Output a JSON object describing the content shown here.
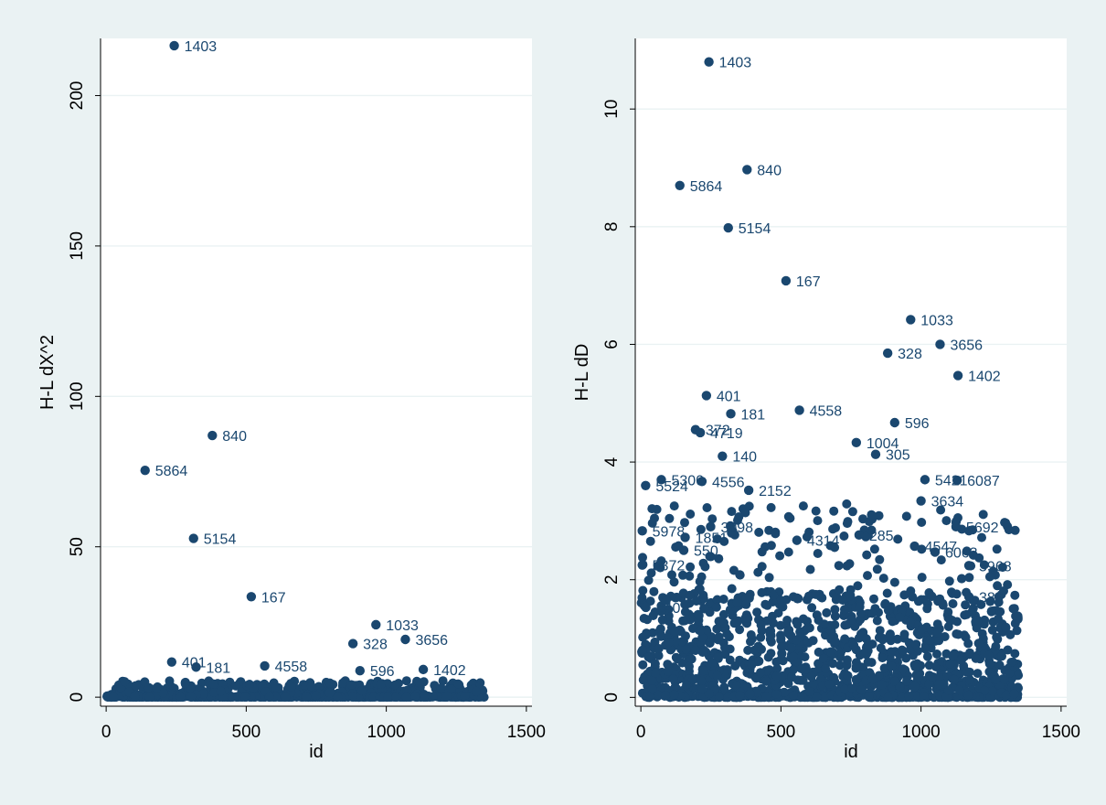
{
  "colors": {
    "background": "#eaf2f3",
    "plot_bg": "#ffffff",
    "marker": "#1a476f",
    "grid": "#eaf2f3",
    "axis": "#000000"
  },
  "chart_data": [
    {
      "type": "scatter",
      "title": "",
      "xlabel": "id",
      "ylabel": "H-L dX^2",
      "xlim": [
        -20,
        1520
      ],
      "ylim": [
        -3,
        219
      ],
      "xticks": [
        0,
        500,
        1000,
        1500
      ],
      "yticks": [
        0,
        50,
        100,
        150,
        200
      ],
      "grid": true,
      "labeled_points": [
        {
          "x": 243,
          "y": 216.6,
          "label": "1403"
        },
        {
          "x": 379,
          "y": 87,
          "label": "840"
        },
        {
          "x": 139,
          "y": 75.4,
          "label": "5864"
        },
        {
          "x": 312,
          "y": 52.8,
          "label": "5154"
        },
        {
          "x": 518,
          "y": 33.4,
          "label": "167"
        },
        {
          "x": 963,
          "y": 24.1,
          "label": "1033"
        },
        {
          "x": 1068,
          "y": 19.2,
          "label": "3656"
        },
        {
          "x": 881,
          "y": 17.8,
          "label": "328"
        },
        {
          "x": 234,
          "y": 11.7,
          "label": "401"
        },
        {
          "x": 566,
          "y": 10.4,
          "label": "4558"
        },
        {
          "x": 1132,
          "y": 9.2,
          "label": "1402"
        },
        {
          "x": 321,
          "y": 10,
          "label": "181"
        },
        {
          "x": 906,
          "y": 8.8,
          "label": "596"
        }
      ]
    },
    {
      "type": "scatter",
      "title": "",
      "xlabel": "id",
      "ylabel": "H-L dD",
      "xlim": [
        -20,
        1520
      ],
      "ylim": [
        -0.15,
        11.2
      ],
      "xticks": [
        0,
        500,
        1000,
        1500
      ],
      "yticks": [
        0,
        2,
        4,
        6,
        8,
        10
      ],
      "grid": true,
      "labeled_points": [
        {
          "x": 243,
          "y": 10.8,
          "label": "1403"
        },
        {
          "x": 379,
          "y": 8.97,
          "label": "840"
        },
        {
          "x": 139,
          "y": 8.7,
          "label": "5864"
        },
        {
          "x": 312,
          "y": 7.98,
          "label": "5154"
        },
        {
          "x": 518,
          "y": 7.08,
          "label": "167"
        },
        {
          "x": 963,
          "y": 6.42,
          "label": "1033"
        },
        {
          "x": 1068,
          "y": 6.0,
          "label": "3656"
        },
        {
          "x": 881,
          "y": 5.85,
          "label": "328"
        },
        {
          "x": 1132,
          "y": 5.47,
          "label": "1402"
        },
        {
          "x": 234,
          "y": 5.13,
          "label": "401"
        },
        {
          "x": 321,
          "y": 4.82,
          "label": "181"
        },
        {
          "x": 566,
          "y": 4.88,
          "label": "4558"
        },
        {
          "x": 906,
          "y": 4.67,
          "label": "596"
        },
        {
          "x": 195,
          "y": 4.55,
          "label": "372"
        },
        {
          "x": 212,
          "y": 4.5,
          "label": "4719"
        },
        {
          "x": 291,
          "y": 4.1,
          "label": "140"
        },
        {
          "x": 769,
          "y": 4.33,
          "label": "1004"
        },
        {
          "x": 838,
          "y": 4.13,
          "label": "305"
        },
        {
          "x": 1129,
          "y": 3.69,
          "label": "6087"
        },
        {
          "x": 1014,
          "y": 3.7,
          "label": "5421"
        },
        {
          "x": 1000,
          "y": 3.34,
          "label": "3634"
        },
        {
          "x": 385,
          "y": 3.52,
          "label": "2152"
        },
        {
          "x": 1125,
          "y": 2.9,
          "label": "5692"
        },
        {
          "x": 5,
          "y": 2.83,
          "label": "5978"
        },
        {
          "x": 249,
          "y": 2.9,
          "label": "3098"
        },
        {
          "x": 557,
          "y": 2.67,
          "label": "4314"
        },
        {
          "x": 779,
          "y": 2.76,
          "label": "285"
        },
        {
          "x": 977,
          "y": 2.57,
          "label": "4547"
        },
        {
          "x": 1050,
          "y": 2.47,
          "label": "6063"
        },
        {
          "x": 1171,
          "y": 2.24,
          "label": "5968"
        },
        {
          "x": 1171,
          "y": 1.71,
          "label": "386"
        },
        {
          "x": 17,
          "y": 3.6,
          "label": "5524"
        },
        {
          "x": 73,
          "y": 3.7,
          "label": "5300"
        },
        {
          "x": 218,
          "y": 3.67,
          "label": "4556"
        },
        {
          "x": 158,
          "y": 2.72,
          "label": "1851"
        },
        {
          "x": 153,
          "y": 2.5,
          "label": "550"
        },
        {
          "x": 5,
          "y": 2.25,
          "label": "5372"
        },
        {
          "x": 18,
          "y": 1.53,
          "label": "440"
        }
      ]
    }
  ]
}
